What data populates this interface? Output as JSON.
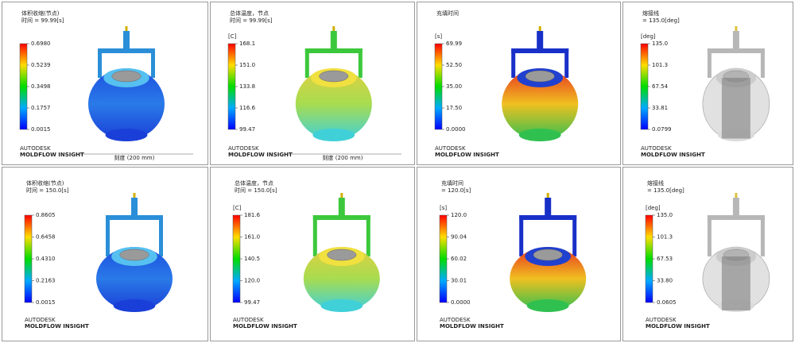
{
  "logo": {
    "line1": "AUTODESK",
    "line2": "MOLDFLOW INSIGHT"
  },
  "panels": [
    {
      "title": "体积收缩(节点)",
      "time": "时间 = 99.99[s]",
      "legend": [
        "0.6980",
        "0.5239",
        "0.3498",
        "0.1757",
        "0.0015"
      ],
      "scale": "刻度 (200 mm)"
    },
    {
      "title": "总体温度，节点",
      "time": "时间 = 99.99[s]",
      "unit": "[C]",
      "legend": [
        "168.1",
        "151.0",
        "133.8",
        "116.6",
        "99.47"
      ],
      "scale": "刻度 (200 mm)"
    },
    {
      "title": "充填时间",
      "unit": "[s]",
      "legend": [
        "69.99",
        "52.50",
        "35.00",
        "17.50",
        "0.0000"
      ]
    },
    {
      "title": "熔接线",
      "time": "= 135.0[deg]",
      "unit": "[deg]",
      "legend": [
        "135.0",
        "101.3",
        "67.54",
        "33.81",
        "0.0799"
      ]
    },
    {
      "title": "体积收缩(节点)",
      "time": "时间 = 150.0[s]",
      "legend": [
        "0.8605",
        "0.6458",
        "0.4310",
        "0.2163",
        "0.0015"
      ]
    },
    {
      "title": "总体温度，节点",
      "time": "时间 = 150.0[s]",
      "unit": "[C]",
      "legend": [
        "181.6",
        "161.0",
        "140.5",
        "120.0",
        "99.47"
      ]
    },
    {
      "title": "充填时间",
      "time": "= 120.0[s]",
      "unit": "[s]",
      "legend": [
        "120.0",
        "90.04",
        "60.02",
        "30.01",
        "0.0000"
      ]
    },
    {
      "title": "熔接线",
      "time": "= 135.0[deg]",
      "unit": "[deg]",
      "legend": [
        "135.0",
        "101.3",
        "67.53",
        "33.80",
        "0.0605"
      ]
    }
  ]
}
